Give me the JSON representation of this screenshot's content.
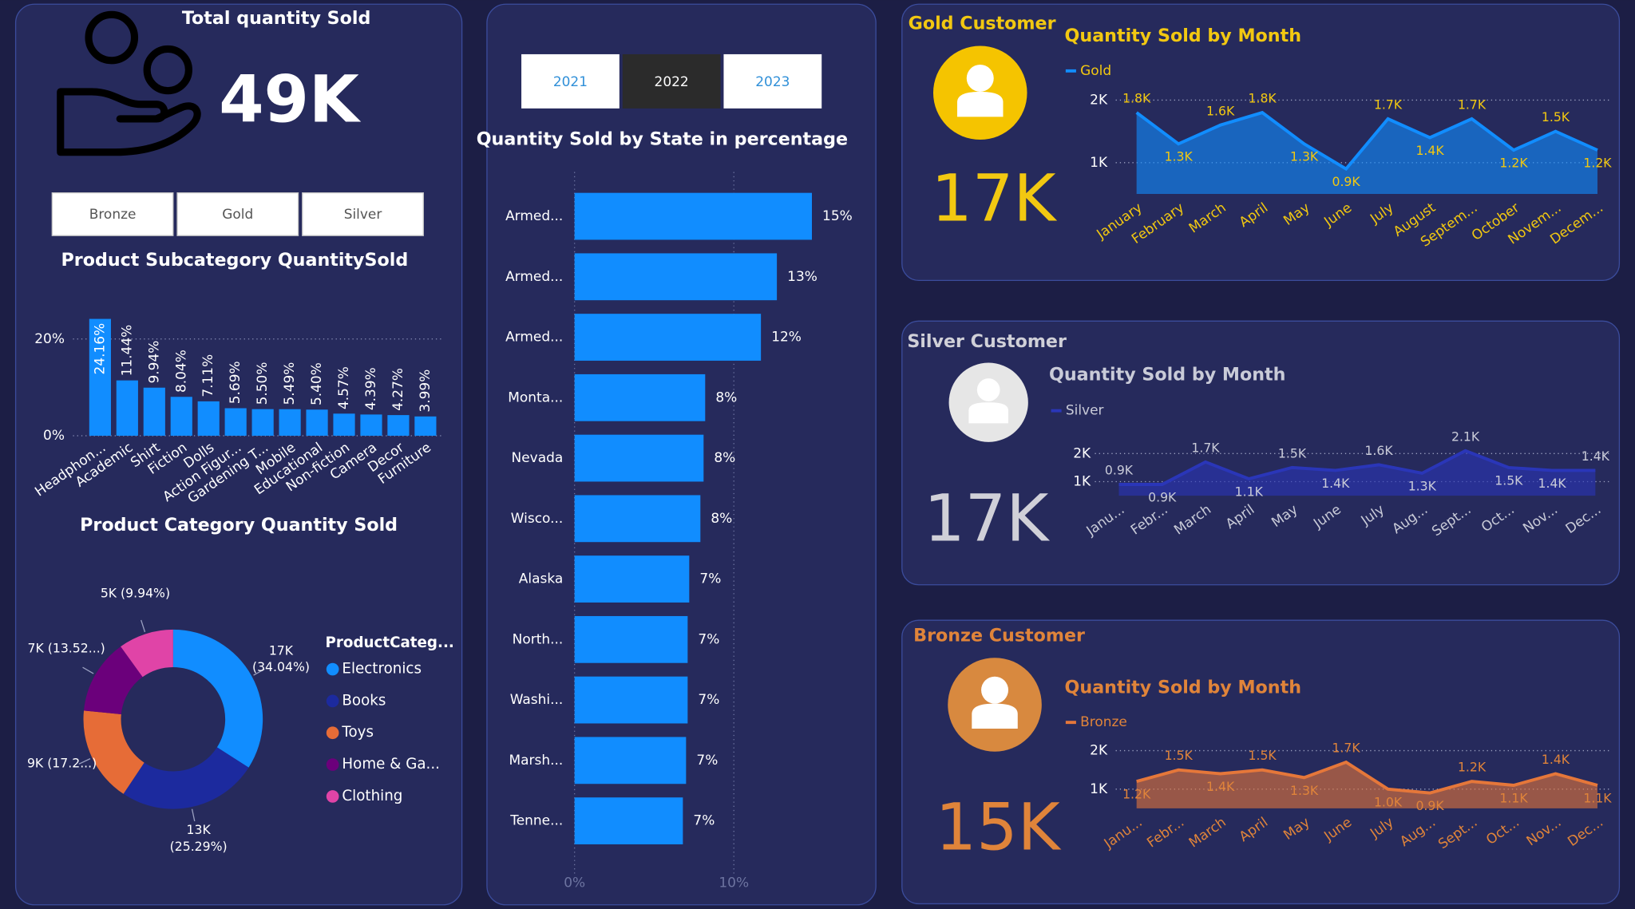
{
  "dashboard": {
    "total": {
      "title": "Total quantity Sold",
      "value": "49K"
    },
    "segment_slicer": [
      "Bronze",
      "Gold",
      "Silver"
    ],
    "year_slicer": {
      "options": [
        "2021",
        "2022",
        "2023"
      ],
      "selected": "2022"
    },
    "gold": {
      "title": "Gold Customer",
      "value": "17K"
    },
    "silver": {
      "title": "Silver Customer",
      "value": "17K"
    },
    "bronze": {
      "title": "Bronze Customer",
      "value": "15K"
    }
  },
  "chart_data": [
    {
      "type": "bar",
      "title": "Product Subcategory QuantitySold",
      "categories": [
        "Headphon...",
        "Academic",
        "Shirt",
        "Fiction",
        "Dolls",
        "Action Figur...",
        "Gardening T...",
        "Mobile",
        "Educational",
        "Non-fiction",
        "Camera",
        "Decor",
        "Furniture"
      ],
      "values": [
        24.16,
        11.44,
        9.94,
        8.04,
        7.11,
        5.69,
        5.5,
        5.49,
        5.4,
        4.57,
        4.39,
        4.27,
        3.99
      ],
      "value_labels": [
        "24.16%",
        "11.44%",
        "9.94%",
        "8.04%",
        "7.11%",
        "5.69%",
        "5.50%",
        "5.49%",
        "5.40%",
        "4.57%",
        "4.39%",
        "4.27%",
        "3.99%"
      ],
      "color": "#118dff",
      "ylim": [
        0,
        25
      ],
      "yticks": [
        {
          "value": 0,
          "label": "0%"
        },
        {
          "value": 20,
          "label": "20%"
        }
      ],
      "grid": true
    },
    {
      "type": "donut",
      "title": "Product Category Quantity Sold",
      "legend_title": "ProductCateg...",
      "categories": [
        "Electronics",
        "Books",
        "Toys",
        "Home & Ga...",
        "Clothing"
      ],
      "values": [
        34.04,
        25.29,
        17.2,
        13.52,
        9.94
      ],
      "value_labels": [
        "17K (34.04%)",
        "13K (25.29%)",
        "9K (17.2...)",
        "7K (13.52...)",
        "5K (9.94%)"
      ],
      "colors": [
        "#118dff",
        "#1c2a9e",
        "#e66c37",
        "#6b007b",
        "#e044a7"
      ]
    },
    {
      "type": "hbar",
      "title": "Quantity Sold by State in percentage",
      "categories": [
        "Armed...",
        "Armed...",
        "Armed...",
        "Monta...",
        "Nevada",
        "Wisco...",
        "Alaska",
        "North...",
        "Washi...",
        "Marsh...",
        "Tenne..."
      ],
      "values": [
        14.9,
        12.7,
        11.7,
        8.2,
        8.1,
        7.9,
        7.2,
        7.1,
        7.1,
        7.0,
        6.8
      ],
      "value_labels": [
        "15%",
        "13%",
        "12%",
        "8%",
        "8%",
        "8%",
        "7%",
        "7%",
        "7%",
        "7%",
        "7%"
      ],
      "color": "#118dff",
      "xlim": [
        0,
        18
      ],
      "xticks": [
        {
          "value": 0,
          "label": "0%"
        },
        {
          "value": 10,
          "label": "10%"
        }
      ],
      "grid": true
    },
    {
      "type": "area",
      "title": "Quantity Sold by Month",
      "label_color": "#f2c811",
      "categories": [
        "January",
        "February",
        "March",
        "April",
        "May",
        "June",
        "July",
        "August",
        "Septem...",
        "October",
        "Novem...",
        "Decem..."
      ],
      "series": [
        {
          "name": "Gold",
          "color": "#118dff",
          "values": [
            1800,
            1300,
            1600,
            1800,
            1300,
            900,
            1700,
            1400,
            1700,
            1200,
            1500,
            1200
          ],
          "value_labels": [
            "1.8K",
            "1.3K",
            "1.6K",
            "1.8K",
            "1.3K",
            "0.9K",
            "1.7K",
            "1.4K",
            "1.7K",
            "1.2K",
            "1.5K",
            "1.2K"
          ]
        }
      ],
      "ylim": [
        500,
        2100
      ],
      "yticks": [
        {
          "value": 1000,
          "label": "1K"
        },
        {
          "value": 2000,
          "label": "2K"
        }
      ],
      "grid": true
    },
    {
      "type": "area",
      "title": "Quantity Sold by Month",
      "label_color": "#c9cbd8",
      "categories": [
        "Janu...",
        "Febr...",
        "March",
        "April",
        "May",
        "June",
        "July",
        "Aug...",
        "Sept...",
        "Oct...",
        "Nov...",
        "Dec..."
      ],
      "series": [
        {
          "name": "Silver",
          "color": "#2a36b8",
          "values": [
            900,
            900,
            1700,
            1100,
            1500,
            1400,
            1600,
            1300,
            2100,
            1500,
            1400,
            1400
          ],
          "value_labels": [
            "0.9K",
            "0.9K",
            "1.7K",
            "1.1K",
            "1.5K",
            "1.4K",
            "1.6K",
            "1.3K",
            "2.1K",
            "1.5K",
            "1.4K",
            "1.4K"
          ]
        }
      ],
      "ylim": [
        500,
        2300
      ],
      "yticks": [
        {
          "value": 1000,
          "label": "1K"
        },
        {
          "value": 2000,
          "label": "2K"
        }
      ],
      "grid": true
    },
    {
      "type": "area",
      "title": "Quantity Sold by Month",
      "label_color": "#e0843a",
      "categories": [
        "Janu...",
        "Febr...",
        "March",
        "April",
        "May",
        "June",
        "July",
        "Aug...",
        "Sept...",
        "Oct...",
        "Nov...",
        "Dec..."
      ],
      "series": [
        {
          "name": "Bronze",
          "color": "#e5773a",
          "values": [
            1200,
            1500,
            1400,
            1500,
            1300,
            1700,
            1000,
            900,
            1200,
            1100,
            1400,
            1100
          ],
          "value_labels": [
            "1.2K",
            "1.5K",
            "1.4K",
            "1.5K",
            "1.3K",
            "1.7K",
            "1.0K",
            "0.9K",
            "1.2K",
            "1.1K",
            "1.4K",
            "1.1K"
          ]
        }
      ],
      "ylim": [
        500,
        2300
      ],
      "yticks": [
        {
          "value": 1000,
          "label": "1K"
        },
        {
          "value": 2000,
          "label": "2K"
        }
      ],
      "grid": true
    }
  ]
}
